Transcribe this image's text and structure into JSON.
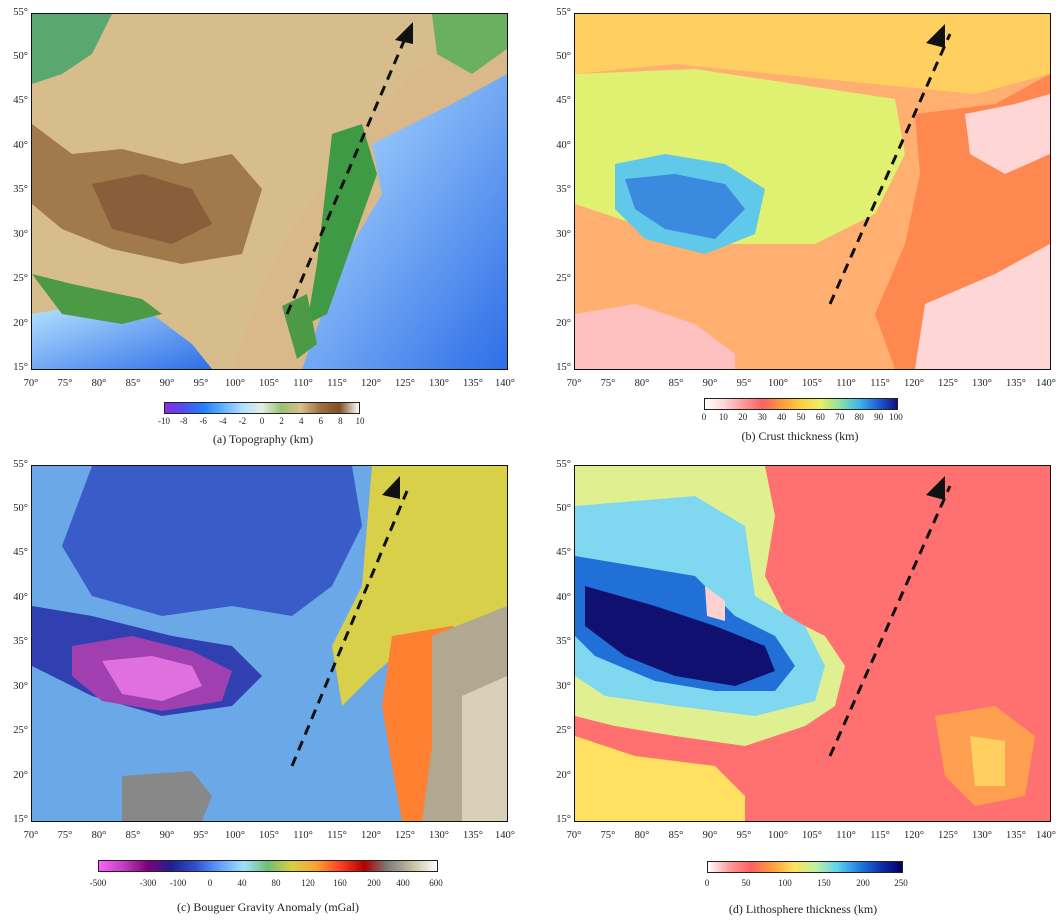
{
  "lat_ticks": [
    "15°",
    "20°",
    "25°",
    "30°",
    "35°",
    "40°",
    "45°",
    "50°",
    "55°"
  ],
  "lon_ticks": [
    "70°",
    "75°",
    "80°",
    "85°",
    "90°",
    "95°",
    "100°",
    "105°",
    "110°",
    "115°",
    "120°",
    "125°",
    "130°",
    "135°",
    "140°"
  ],
  "panels": [
    {
      "caption": "(a) Topography (km)",
      "colorbar_ticks": [
        "-10",
        "-8",
        "-6",
        "-4",
        "-2",
        "0",
        "2",
        "4",
        "6",
        "8",
        "10"
      ],
      "colors": [
        "#8a2be2",
        "#5050f0",
        "#2080ff",
        "#60b0ff",
        "#b0e0ff",
        "#2e8b3d",
        "#9ac070",
        "#d8c08a",
        "#a07040",
        "#805020",
        "#ffffff"
      ]
    },
    {
      "caption": "(b) Crust thickness (km)",
      "colorbar_ticks": [
        "0",
        "10",
        "20",
        "30",
        "40",
        "50",
        "60",
        "70",
        "80",
        "90",
        "100"
      ],
      "colors": [
        "#ffffff",
        "#ffd6d6",
        "#ff9a9a",
        "#ff6060",
        "#ff9a40",
        "#ffd040",
        "#e8f060",
        "#90e0a0",
        "#40b8e8",
        "#2060d8",
        "#101080"
      ]
    },
    {
      "caption": "(c) Bouguer Gravity Anomaly (mGal)",
      "colorbar_ticks": [
        "-500",
        "-300",
        "-100",
        "0",
        "40",
        "80",
        "120",
        "160",
        "200",
        "400",
        "600"
      ],
      "colors": [
        "#ff60ff",
        "#c040c0",
        "#800080",
        "#202090",
        "#3050d0",
        "#60a0ff",
        "#a0e0ff",
        "#70c070",
        "#d8d040",
        "#ffa030",
        "#ff4020",
        "#b00000",
        "#808080",
        "#c8c0a0",
        "#ffffff"
      ]
    },
    {
      "caption": "(d) Lithosphere thickness (km)",
      "colorbar_ticks": [
        "0",
        "50",
        "100",
        "150",
        "200",
        "250"
      ],
      "colors": [
        "#ffffff",
        "#ff9a9a",
        "#ff6060",
        "#ffa040",
        "#ffe060",
        "#c0f0a0",
        "#60d0f0",
        "#2080e0",
        "#1030b0",
        "#000060"
      ]
    }
  ]
}
